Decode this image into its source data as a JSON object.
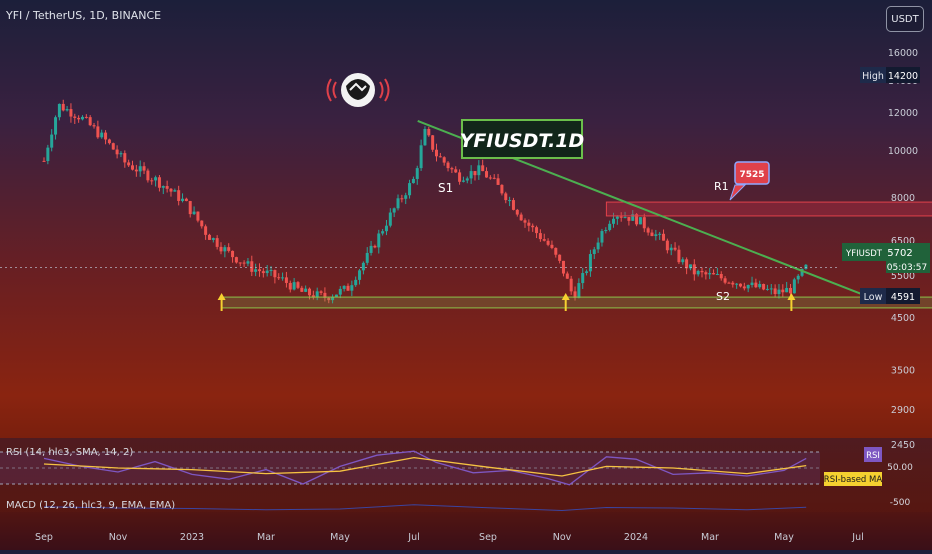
{
  "header": {
    "symbol_line": "YFI / TetherUS, 1D, BINANCE",
    "currency": "USDT"
  },
  "annotations": {
    "title_box": "YFIUSDT.1D",
    "s1": "S1",
    "r1": "R1",
    "s2": "S2",
    "r1_value": "7525"
  },
  "price_scale": {
    "high_label": "High",
    "high_value": "14200",
    "symbol_tag": "YFIUSDT",
    "last_price": "5702",
    "countdown": "05:03:57",
    "low_label": "Low",
    "low_value": "4591"
  },
  "rsi": {
    "legend": "RSI (14, hlc3, SMA, 14, 2)",
    "tag": "RSI",
    "value_tag": "50.00",
    "ma_tag": "RSI-based MA"
  },
  "macd": {
    "legend": "MACD (12, 26, hlc3, 9, EMA, EMA)",
    "value_tag": "-500"
  },
  "chart_data": {
    "type": "candlestick",
    "title": "YFI / TetherUS, 1D, BINANCE",
    "y_scale": "log",
    "y_ticks": [
      16000,
      14000,
      12000,
      10000,
      8000,
      6500,
      5500,
      4500,
      3500,
      2900,
      2450
    ],
    "y_tick_labels": [
      "16000",
      "14000",
      "12000",
      "10000",
      "8000",
      "6500",
      "5500",
      "4500",
      "3500",
      "2900",
      "2450"
    ],
    "x_tick_labels": [
      "Sep",
      "Nov",
      "2023",
      "Mar",
      "May",
      "Jul",
      "Sep",
      "Nov",
      "2024",
      "Mar",
      "May",
      "Jul"
    ],
    "price_path": [
      [
        0,
        9500
      ],
      [
        0.2,
        12400
      ],
      [
        0.5,
        11700
      ],
      [
        0.8,
        10600
      ],
      [
        1.1,
        9400
      ],
      [
        1.5,
        8700
      ],
      [
        1.9,
        7800
      ],
      [
        2.2,
        6700
      ],
      [
        2.5,
        6100
      ],
      [
        2.8,
        5700
      ],
      [
        3.2,
        5400
      ],
      [
        3.5,
        5050
      ],
      [
        3.8,
        4950
      ],
      [
        4.1,
        5150
      ],
      [
        4.4,
        6100
      ],
      [
        4.7,
        7400
      ],
      [
        5.0,
        8700
      ],
      [
        5.15,
        10900
      ],
      [
        5.3,
        9800
      ],
      [
        5.6,
        8800
      ],
      [
        5.9,
        9100
      ],
      [
        6.2,
        8200
      ],
      [
        6.5,
        7100
      ],
      [
        6.8,
        6400
      ],
      [
        7.0,
        5700
      ],
      [
        7.15,
        4960
      ],
      [
        7.3,
        5500
      ],
      [
        7.5,
        6600
      ],
      [
        7.7,
        7400
      ],
      [
        8.0,
        7200
      ],
      [
        8.3,
        6600
      ],
      [
        8.6,
        5900
      ],
      [
        8.8,
        5550
      ],
      [
        9.1,
        5450
      ],
      [
        9.4,
        5300
      ],
      [
        9.7,
        5150
      ],
      [
        9.9,
        5050
      ],
      [
        10.1,
        5150
      ],
      [
        10.3,
        5702
      ]
    ],
    "high": 14200,
    "low": 4591,
    "last": 5702,
    "resistance_r1": 7525,
    "trendline": [
      [
        5.05,
        11500
      ],
      [
        11.3,
        4850
      ]
    ],
    "zones": [
      {
        "name": "R1",
        "from_x": 7.6,
        "to_x": 13.6,
        "low": 7300,
        "high": 7800
      },
      {
        "name": "S2",
        "from_x": 2.4,
        "to_x": 13.6,
        "low": 4700,
        "high": 4950
      }
    ],
    "support_arrows_x": [
      2.4,
      7.05,
      10.1
    ],
    "rsi": {
      "levels": [
        70,
        50,
        30
      ],
      "rsi_path": [
        [
          0,
          62
        ],
        [
          0.5,
          52
        ],
        [
          1.0,
          45
        ],
        [
          1.5,
          58
        ],
        [
          2.0,
          42
        ],
        [
          2.5,
          36
        ],
        [
          3.0,
          48
        ],
        [
          3.5,
          30
        ],
        [
          4.0,
          52
        ],
        [
          4.5,
          66
        ],
        [
          5.0,
          71
        ],
        [
          5.3,
          57
        ],
        [
          5.8,
          44
        ],
        [
          6.3,
          47
        ],
        [
          6.8,
          37
        ],
        [
          7.1,
          29
        ],
        [
          7.6,
          64
        ],
        [
          8.0,
          61
        ],
        [
          8.5,
          42
        ],
        [
          9.0,
          44
        ],
        [
          9.5,
          40
        ],
        [
          10.0,
          47
        ],
        [
          10.3,
          62
        ]
      ],
      "ma_path": [
        [
          0,
          55
        ],
        [
          1.0,
          50
        ],
        [
          2.0,
          48
        ],
        [
          3.0,
          43
        ],
        [
          4.0,
          46
        ],
        [
          5.0,
          63
        ],
        [
          6.0,
          51
        ],
        [
          7.0,
          40
        ],
        [
          7.6,
          52
        ],
        [
          8.5,
          50
        ],
        [
          9.5,
          43
        ],
        [
          10.3,
          53
        ]
      ]
    }
  }
}
